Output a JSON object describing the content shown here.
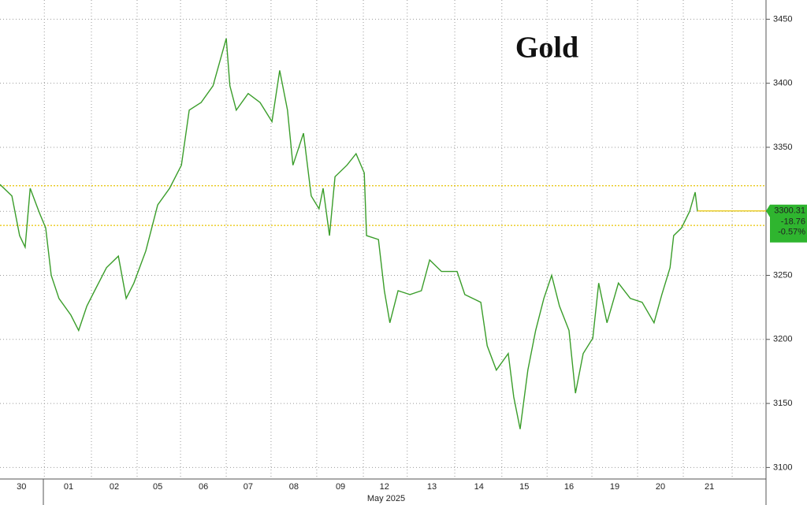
{
  "chart_data": {
    "type": "line",
    "title": "Gold",
    "x_label": "May 2025",
    "xlim": [
      0,
      16.76
    ],
    "ylim": [
      3091,
      3465
    ],
    "xticks": [
      {
        "value": 0.47,
        "label": "30"
      },
      {
        "value": 1.5,
        "label": "01"
      },
      {
        "value": 2.5,
        "label": "02"
      },
      {
        "value": 3.45,
        "label": "05"
      },
      {
        "value": 4.45,
        "label": "06"
      },
      {
        "value": 5.43,
        "label": "07"
      },
      {
        "value": 6.43,
        "label": "08"
      },
      {
        "value": 7.45,
        "label": "09"
      },
      {
        "value": 8.41,
        "label": "12"
      },
      {
        "value": 9.45,
        "label": "13"
      },
      {
        "value": 10.48,
        "label": "14"
      },
      {
        "value": 11.47,
        "label": "15"
      },
      {
        "value": 12.45,
        "label": "16"
      },
      {
        "value": 13.45,
        "label": "19"
      },
      {
        "value": 14.45,
        "label": "20"
      },
      {
        "value": 15.52,
        "label": "21"
      }
    ],
    "yticks": [
      3100,
      3150,
      3200,
      3250,
      3300,
      3350,
      3400,
      3450
    ],
    "grid": true,
    "reference_lines": [
      3320,
      3289
    ],
    "reference_color": "#e8c400",
    "last_value": 3300.31,
    "price_tag": [
      "-18.76",
      "-0.57%"
    ],
    "tag_color": "#2fb52f",
    "series": [
      {
        "name": "Gold",
        "color": "#3a9d2a",
        "x": [
          0,
          0.26,
          0.43,
          0.55,
          0.66,
          0.86,
          1.0,
          1.12,
          1.29,
          1.55,
          1.72,
          1.9,
          2.07,
          2.33,
          2.59,
          2.76,
          2.93,
          3.19,
          3.45,
          3.71,
          3.97,
          4.14,
          4.4,
          4.66,
          4.95,
          5.03,
          5.17,
          5.43,
          5.69,
          5.95,
          6.12,
          6.29,
          6.41,
          6.64,
          6.81,
          6.98,
          7.07,
          7.21,
          7.33,
          7.59,
          7.79,
          7.97,
          8.02,
          8.28,
          8.41,
          8.53,
          8.71,
          8.97,
          9.22,
          9.4,
          9.66,
          10.0,
          10.17,
          10.52,
          10.66,
          10.86,
          11.12,
          11.24,
          11.38,
          11.55,
          11.72,
          11.9,
          12.07,
          12.24,
          12.45,
          12.59,
          12.76,
          12.97,
          13.1,
          13.28,
          13.53,
          13.79,
          14.05,
          14.31,
          14.48,
          14.66,
          14.74,
          14.91,
          15.09,
          15.21,
          15.26
        ],
        "values": [
          3321,
          3312,
          3281,
          3272,
          3318,
          3299,
          3287,
          3250,
          3232,
          3219,
          3207,
          3226,
          3238,
          3256,
          3265,
          3232,
          3244,
          3269,
          3305,
          3318,
          3336,
          3379,
          3385,
          3398,
          3435,
          3398,
          3379,
          3392,
          3385,
          3370,
          3410,
          3379,
          3336,
          3361,
          3312,
          3302,
          3318,
          3281,
          3327,
          3336,
          3345,
          3330,
          3281,
          3278,
          3238,
          3213,
          3238,
          3235,
          3238,
          3262,
          3253,
          3253,
          3235,
          3229,
          3195,
          3176,
          3189,
          3155,
          3130,
          3176,
          3207,
          3232,
          3250,
          3226,
          3207,
          3158,
          3189,
          3201,
          3244,
          3213,
          3244,
          3232,
          3229,
          3213,
          3235,
          3256,
          3281,
          3287,
          3300,
          3315,
          3300
        ]
      }
    ]
  }
}
